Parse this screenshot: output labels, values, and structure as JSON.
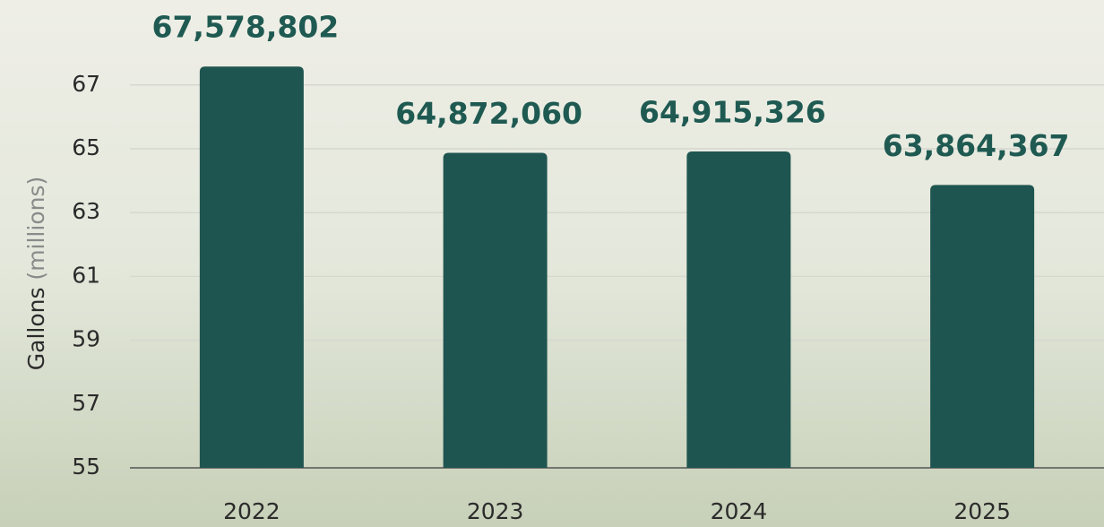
{
  "chart_data": {
    "type": "bar",
    "ylabel": "Gallons",
    "ylabel_unit": "(millions)",
    "categories": [
      "2022",
      "2023",
      "2024",
      "2025"
    ],
    "values": [
      67.578802,
      64.87206,
      64.915326,
      63.864367
    ],
    "value_labels": [
      "67,578,802",
      "64,872,060",
      "64,915,326",
      "63,864,367"
    ],
    "color": "#1f5550",
    "ylim": [
      55,
      68
    ],
    "yticks": [
      55,
      57,
      59,
      61,
      63,
      65,
      67
    ],
    "grid": true
  }
}
